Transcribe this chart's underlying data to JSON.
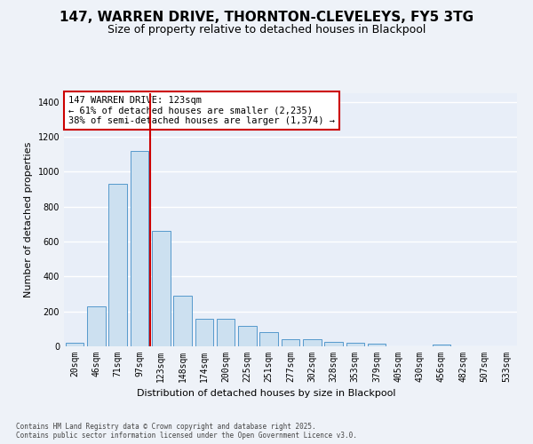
{
  "title_line1": "147, WARREN DRIVE, THORNTON-CLEVELEYS, FY5 3TG",
  "title_line2": "Size of property relative to detached houses in Blackpool",
  "xlabel": "Distribution of detached houses by size in Blackpool",
  "ylabel": "Number of detached properties",
  "categories": [
    "20sqm",
    "46sqm",
    "71sqm",
    "97sqm",
    "123sqm",
    "148sqm",
    "174sqm",
    "200sqm",
    "225sqm",
    "251sqm",
    "277sqm",
    "302sqm",
    "328sqm",
    "353sqm",
    "379sqm",
    "405sqm",
    "430sqm",
    "456sqm",
    "482sqm",
    "507sqm",
    "533sqm"
  ],
  "values": [
    20,
    230,
    930,
    1120,
    660,
    290,
    160,
    160,
    115,
    80,
    40,
    40,
    27,
    20,
    15,
    0,
    0,
    10,
    0,
    0,
    0
  ],
  "bar_color": "#cce0f0",
  "bar_edge_color": "#5599cc",
  "vline_x": 3.5,
  "vline_color": "#cc0000",
  "annotation_text": "147 WARREN DRIVE: 123sqm\n← 61% of detached houses are smaller (2,235)\n38% of semi-detached houses are larger (1,374) →",
  "annotation_box_edgecolor": "#cc0000",
  "ylim": [
    0,
    1450
  ],
  "yticks": [
    0,
    200,
    400,
    600,
    800,
    1000,
    1200,
    1400
  ],
  "bg_color": "#e8eef8",
  "grid_color": "#ffffff",
  "fig_bg_color": "#eef2f8",
  "footer_text": "Contains HM Land Registry data © Crown copyright and database right 2025.\nContains public sector information licensed under the Open Government Licence v3.0.",
  "title_fontsize": 11,
  "subtitle_fontsize": 9,
  "axis_label_fontsize": 8,
  "tick_fontsize": 7,
  "annotation_fontsize": 7.5
}
